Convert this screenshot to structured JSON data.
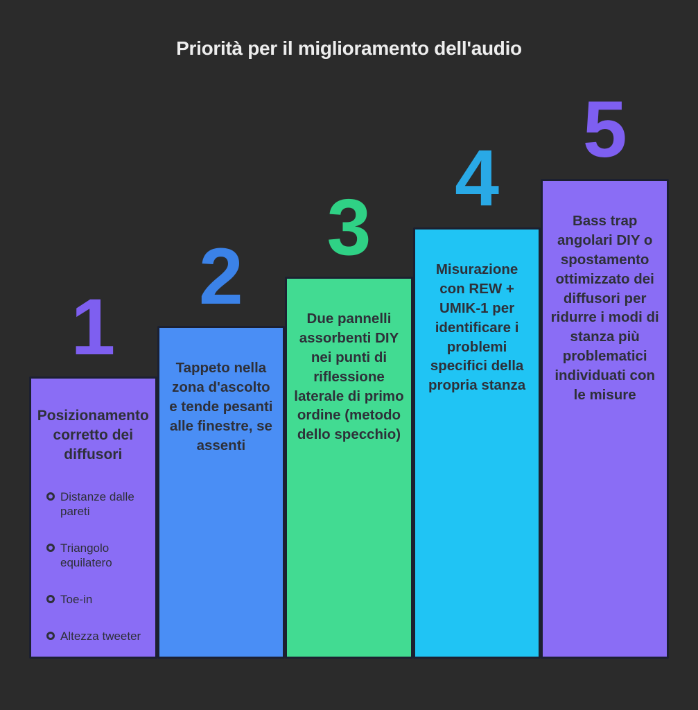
{
  "background_color": "#2b2b2b",
  "bar_border_color": "#1c2030",
  "bar_text_color": "#2e3039",
  "title": {
    "text": "Priorità per il miglioramento dell'audio",
    "color": "#ededed"
  },
  "steps": [
    {
      "number": "1",
      "number_color": "#7e5ff0",
      "bar_color": "#8a6df5",
      "heading": "Posizionamento corretto dei diffusori",
      "bullets": [
        "Distanze dalle pareti",
        "Triangolo equilatero",
        "Toe-in",
        "Altezza tweeter"
      ]
    },
    {
      "number": "2",
      "number_color": "#3b82e8",
      "bar_color": "#4a8ef5",
      "text": "Tappeto nella zona d'ascolto e tende pesanti alle finestre, se assenti"
    },
    {
      "number": "3",
      "number_color": "#2fd185",
      "bar_color": "#42db92",
      "text": "Due pannelli assorbenti DIY nei punti di riflessione laterale di primo ordine (metodo dello specchio)"
    },
    {
      "number": "4",
      "number_color": "#29a9e6",
      "bar_color": "#20c4f4",
      "text": "Misurazione con REW + UMIK-1 per identificare i problemi specifici della propria stanza"
    },
    {
      "number": "5",
      "number_color": "#7e5ff0",
      "bar_color": "#8a6df5",
      "text": "Bass trap angolari DIY o spostamento ottimizzato dei diffusori per ridurre i modi di stanza più problematici individuati con le misure"
    }
  ]
}
